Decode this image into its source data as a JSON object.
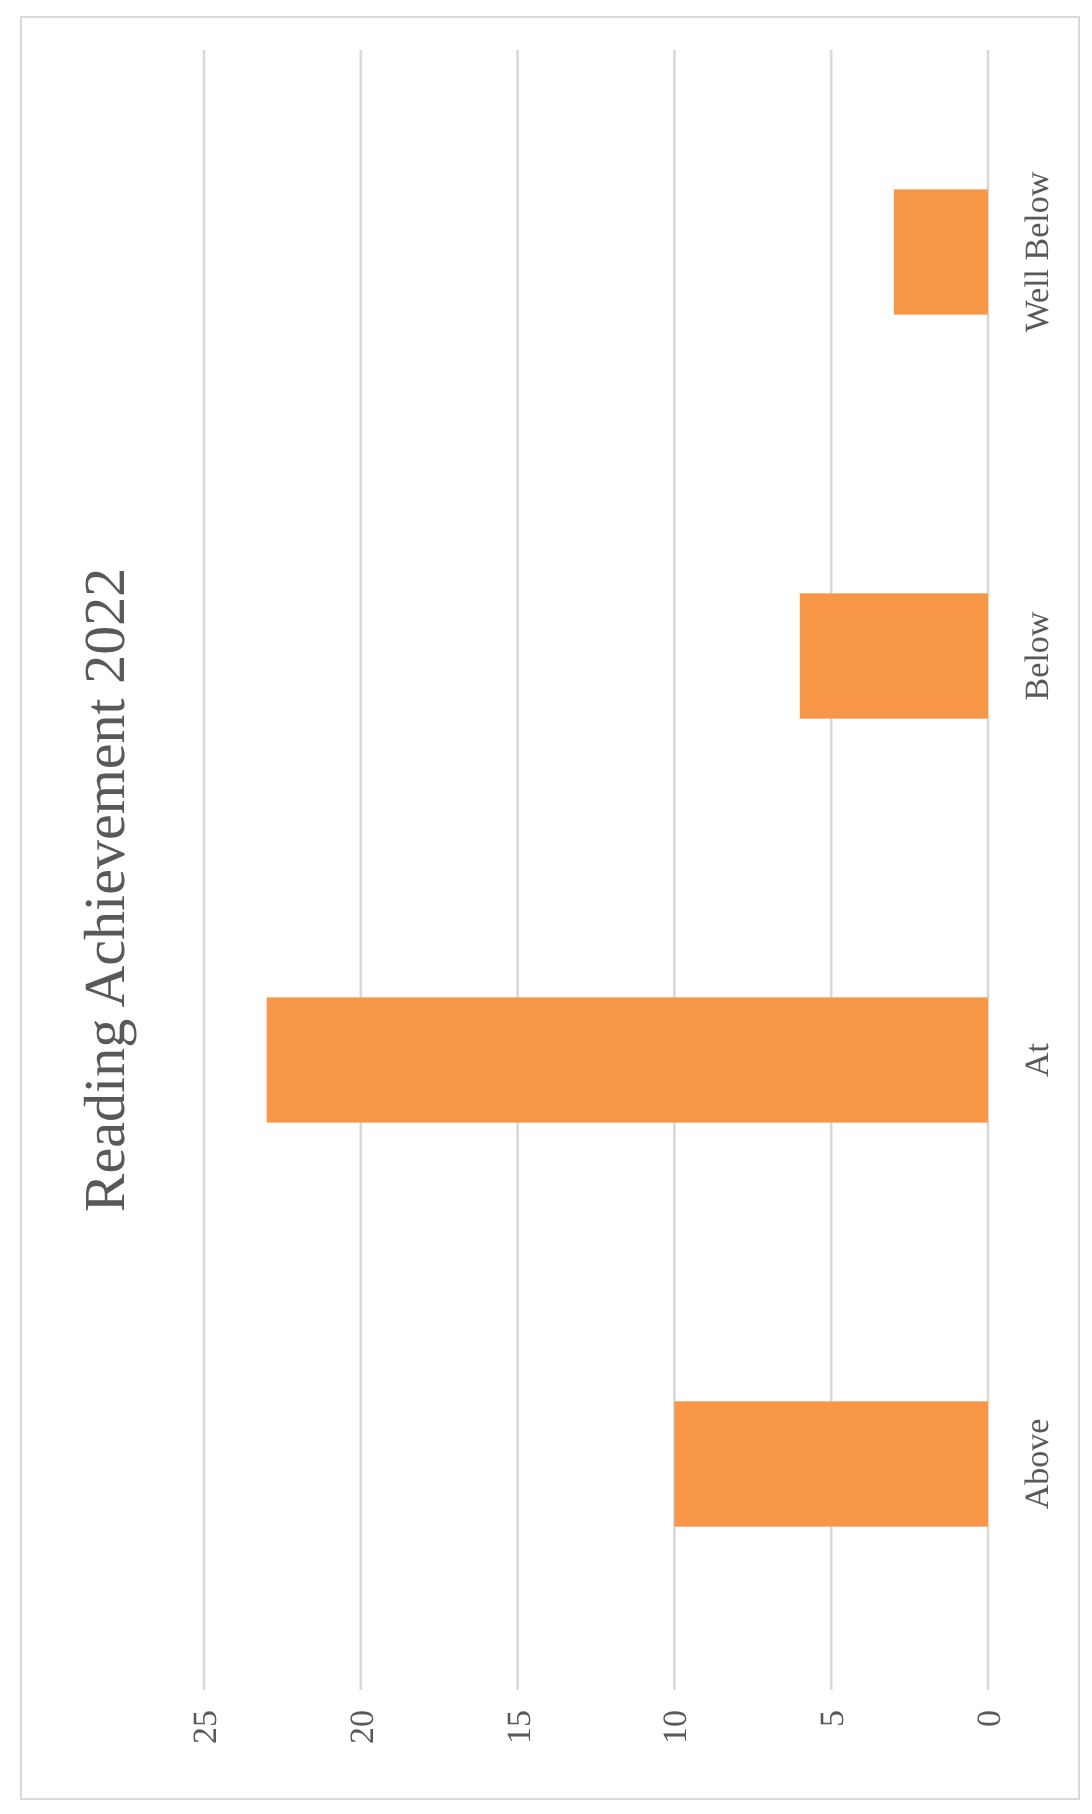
{
  "chart_data": {
    "type": "bar",
    "orientation": "horizontal",
    "title": "Reading Achievement 2022",
    "categories": [
      "Well Below",
      "Below",
      "At",
      "Above"
    ],
    "values": [
      3,
      6,
      23,
      10
    ],
    "color": "#f79646",
    "xlim": [
      25,
      0
    ],
    "xticks": [
      25,
      20,
      15,
      10,
      5,
      0
    ],
    "grid": true
  }
}
